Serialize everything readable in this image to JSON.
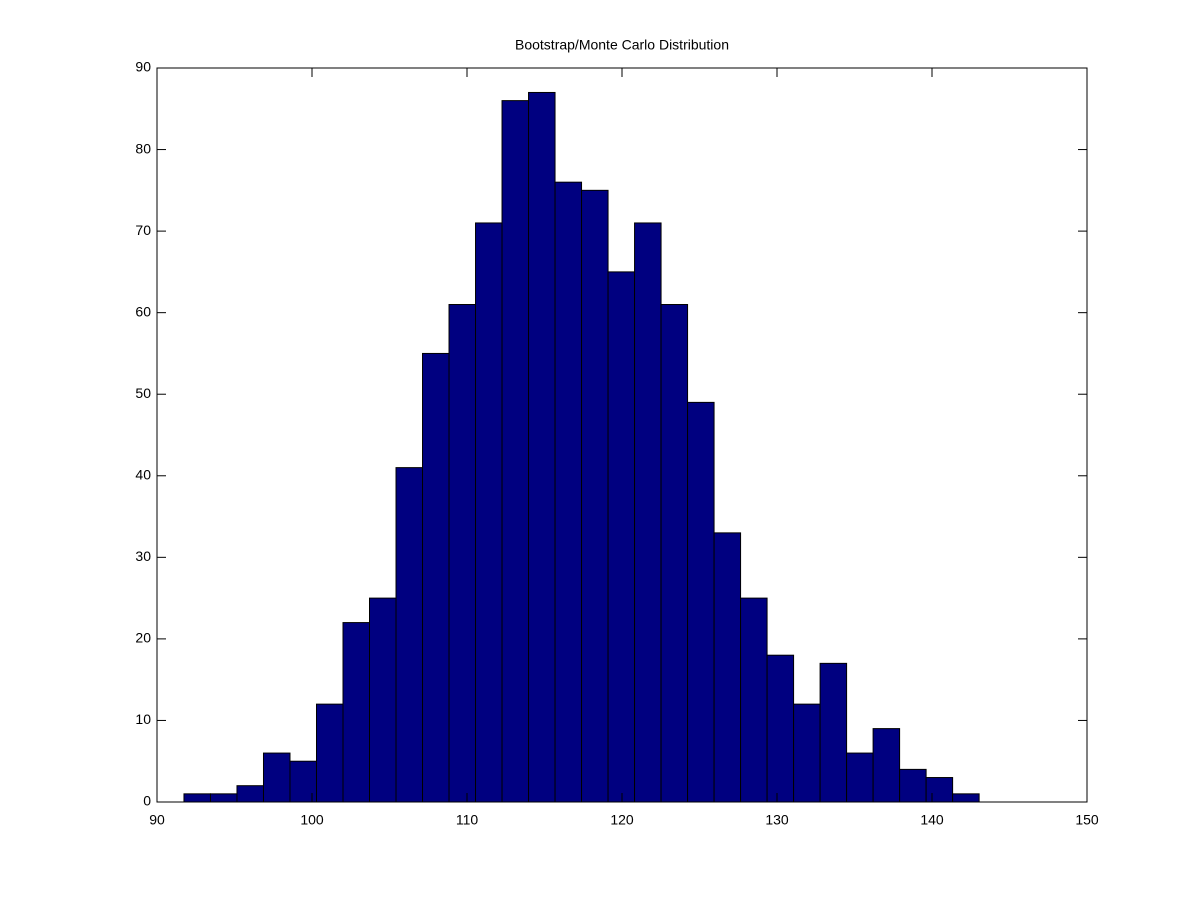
{
  "chart_data": {
    "type": "histogram",
    "title": "Bootstrap/Monte Carlo Distribution",
    "bins": [
      91.74,
      93.45,
      95.16,
      96.87,
      98.58,
      100.29,
      102.0,
      103.71,
      105.42,
      107.13,
      108.84,
      110.55,
      112.26,
      113.97,
      115.68,
      117.39,
      119.1,
      120.81,
      122.52,
      124.23,
      125.94,
      127.65,
      129.36,
      131.07,
      132.78,
      134.49,
      136.2,
      137.91,
      139.62,
      141.33,
      143.04
    ],
    "values": [
      1,
      1,
      2,
      6,
      5,
      12,
      22,
      25,
      41,
      55,
      61,
      71,
      86,
      87,
      76,
      75,
      65,
      71,
      61,
      49,
      33,
      25,
      18,
      12,
      17,
      6,
      9,
      4,
      3,
      1
    ],
    "color": "#000080",
    "xlim": [
      90,
      150
    ],
    "xticks": [
      90,
      100,
      110,
      120,
      130,
      140,
      150
    ],
    "ylim": [
      0,
      90
    ],
    "yticks": [
      0,
      10,
      20,
      30,
      40,
      50,
      60,
      70,
      80,
      90
    ]
  }
}
